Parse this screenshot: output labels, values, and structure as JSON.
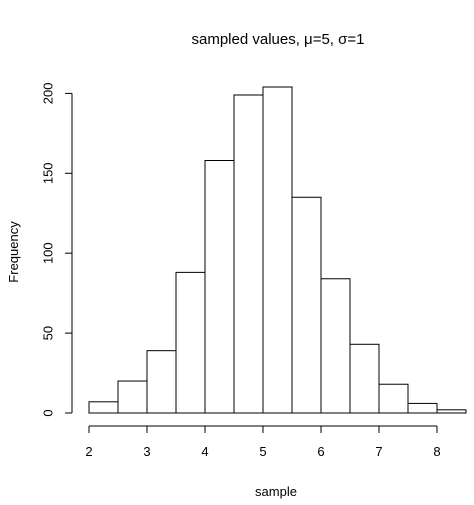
{
  "chart_data": {
    "type": "bar",
    "title": "sampled values, μ=5, σ=1",
    "xlabel": "sample",
    "ylabel": "Frequency",
    "bins": [
      {
        "x0": 2.0,
        "x1": 2.5,
        "count": 7
      },
      {
        "x0": 2.5,
        "x1": 3.0,
        "count": 20
      },
      {
        "x0": 3.0,
        "x1": 3.5,
        "count": 39
      },
      {
        "x0": 3.5,
        "x1": 4.0,
        "count": 88
      },
      {
        "x0": 4.0,
        "x1": 4.5,
        "count": 158
      },
      {
        "x0": 4.5,
        "x1": 5.0,
        "count": 199
      },
      {
        "x0": 5.0,
        "x1": 5.5,
        "count": 204
      },
      {
        "x0": 5.5,
        "x1": 6.0,
        "count": 135
      },
      {
        "x0": 6.0,
        "x1": 6.5,
        "count": 84
      },
      {
        "x0": 6.5,
        "x1": 7.0,
        "count": 43
      },
      {
        "x0": 7.0,
        "x1": 7.5,
        "count": 18
      },
      {
        "x0": 7.5,
        "x1": 8.0,
        "count": 6
      },
      {
        "x0": 8.0,
        "x1": 8.5,
        "count": 2
      }
    ],
    "x_ticks": [
      2,
      3,
      4,
      5,
      6,
      7,
      8
    ],
    "y_ticks": [
      0,
      50,
      100,
      150,
      200
    ],
    "xlim": [
      2,
      8.5
    ],
    "ylim": [
      0,
      204
    ],
    "grid": false,
    "legend": "none",
    "bar_fill": "#ffffff",
    "bar_stroke": "#000000"
  }
}
